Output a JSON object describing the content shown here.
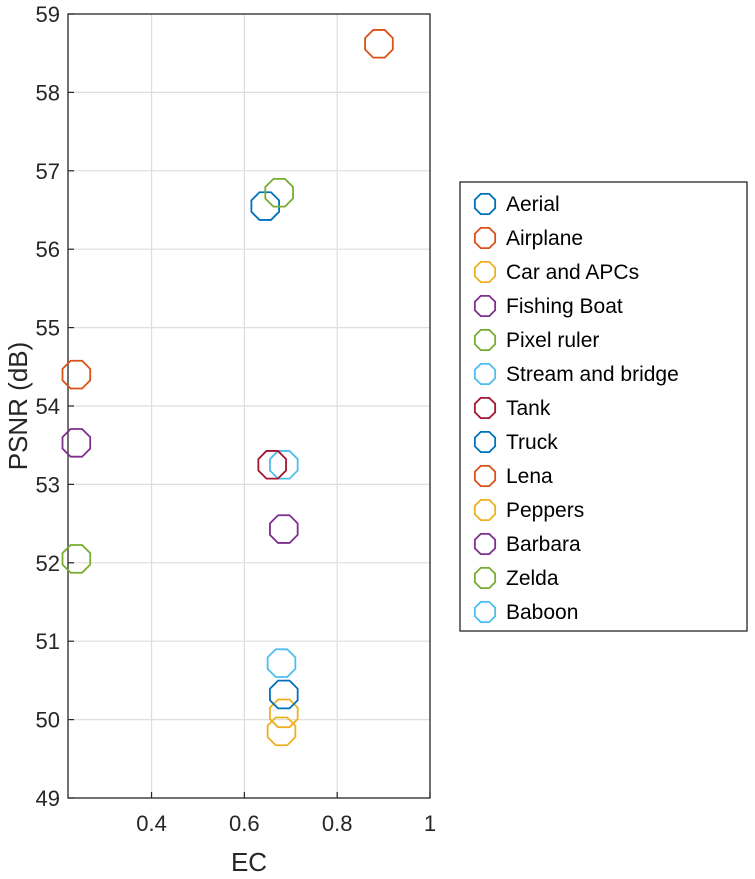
{
  "chart_data": {
    "type": "scatter",
    "title": "",
    "xlabel": "EC",
    "ylabel": "PSNR (dB)",
    "xlim": [
      0.22,
      1.0
    ],
    "ylim": [
      49,
      59
    ],
    "xticks": [
      0.4,
      0.6,
      0.8,
      1
    ],
    "xtick_labels": [
      "0.4",
      "0.6",
      "0.8",
      "1"
    ],
    "yticks": [
      49,
      50,
      51,
      52,
      53,
      54,
      55,
      56,
      57,
      58,
      59
    ],
    "ytick_labels": [
      "49",
      "50",
      "51",
      "52",
      "53",
      "54",
      "55",
      "56",
      "57",
      "58",
      "59"
    ],
    "grid": true,
    "marker": "octagon-open",
    "legend_position": "right-outside",
    "series": [
      {
        "name": "Aerial",
        "color": "#0072BD",
        "points": [
          {
            "x": 0.645,
            "y": 56.55
          }
        ]
      },
      {
        "name": "Airplane",
        "color": "#D95319",
        "points": [
          {
            "x": 0.89,
            "y": 58.62
          }
        ]
      },
      {
        "name": "Car and APCs",
        "color": "#EDB120",
        "points": [
          {
            "x": 0.685,
            "y": 50.08
          }
        ]
      },
      {
        "name": "Fishing Boat",
        "color": "#7E2F8E",
        "points": [
          {
            "x": 0.685,
            "y": 52.43
          }
        ]
      },
      {
        "name": "Pixel ruler",
        "color": "#77AC30",
        "points": [
          {
            "x": 0.675,
            "y": 56.72
          }
        ]
      },
      {
        "name": "Stream and bridge",
        "color": "#4DBEEE",
        "points": [
          {
            "x": 0.685,
            "y": 53.25
          }
        ]
      },
      {
        "name": "Tank",
        "color": "#A2142F",
        "points": [
          {
            "x": 0.66,
            "y": 53.25
          }
        ]
      },
      {
        "name": "Truck",
        "color": "#0072BD",
        "points": [
          {
            "x": 0.685,
            "y": 50.32
          }
        ]
      },
      {
        "name": "Lena",
        "color": "#D95319",
        "points": [
          {
            "x": 0.238,
            "y": 54.4
          }
        ]
      },
      {
        "name": "Peppers",
        "color": "#EDB120",
        "points": [
          {
            "x": 0.68,
            "y": 49.85
          }
        ]
      },
      {
        "name": "Barbara",
        "color": "#7E2F8E",
        "points": [
          {
            "x": 0.238,
            "y": 53.53
          }
        ]
      },
      {
        "name": "Zelda",
        "color": "#77AC30",
        "points": [
          {
            "x": 0.238,
            "y": 52.05
          }
        ]
      },
      {
        "name": "Baboon",
        "color": "#4DBEEE",
        "points": [
          {
            "x": 0.68,
            "y": 50.72
          }
        ]
      }
    ]
  }
}
